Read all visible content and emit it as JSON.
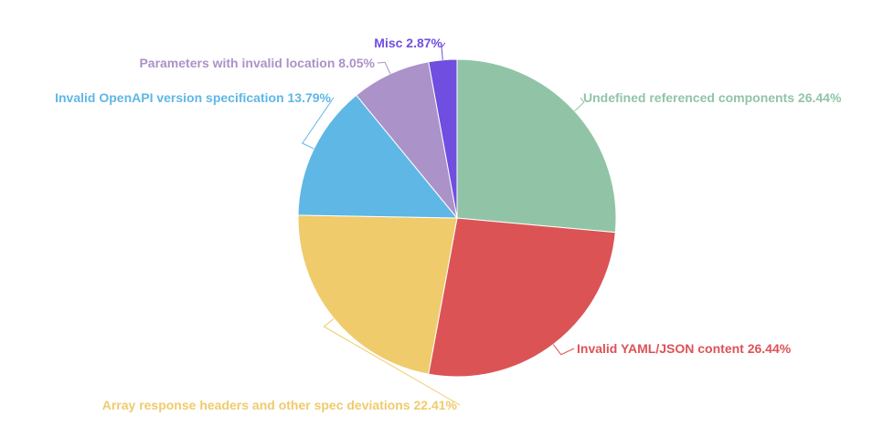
{
  "chart_data": {
    "type": "pie",
    "title": "",
    "start_angle_deg": 0,
    "direction": "clockwise",
    "slices": [
      {
        "label": "Undefined referenced components 26.44%",
        "value": 26.44,
        "color": "#91c4a6"
      },
      {
        "label": "Invalid YAML/JSON content 26.44%",
        "value": 26.44,
        "color": "#dc5356"
      },
      {
        "label": "Array response headers and other spec deviations 22.41%",
        "value": 22.41,
        "color": "#efcb6c"
      },
      {
        "label": "Invalid OpenAPI version specification 13.79%",
        "value": 13.79,
        "color": "#5fb7e5"
      },
      {
        "label": "Parameters with invalid location 8.05%",
        "value": 8.05,
        "color": "#ab92c8"
      },
      {
        "label": "Misc 2.87%",
        "value": 2.87,
        "color": "#6f4ee0"
      }
    ]
  }
}
